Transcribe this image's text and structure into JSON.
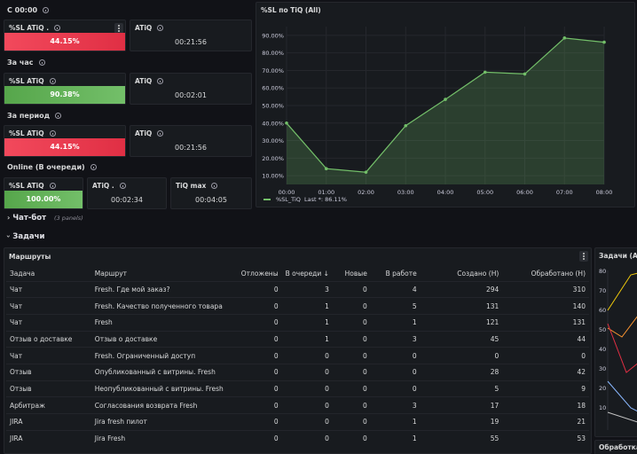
{
  "top": {
    "section1": "С 00:00",
    "section2": "За час",
    "section3": "За период",
    "section4": "Online (В очереди)",
    "rows": [
      {
        "sl_title": "%SL ATiQ .",
        "sl_value": "44.15%",
        "sl_color": "#e02f44",
        "atiq_title": "ATiQ",
        "atiq_value": "00:21:56"
      },
      {
        "sl_title": "%SL ATiQ",
        "sl_value": "90.38%",
        "sl_color": "#56a64b",
        "atiq_title": "ATiQ",
        "atiq_value": "00:02:01"
      },
      {
        "sl_title": "%SL ATiQ",
        "sl_value": "44.15%",
        "sl_color": "#e02f44",
        "atiq_title": "ATiQ",
        "atiq_value": "00:21:56"
      }
    ],
    "online": {
      "sl_title": "%SL ATiQ",
      "sl_value": "100.00%",
      "atiq_title": "ATiQ .",
      "atiq_value": "00:02:34",
      "tiq_title": "TiQ max",
      "tiq_value": "00:04:05"
    }
  },
  "chart_panel": {
    "title": "%SL по TiQ (All)",
    "legend": "%SL_TiQ",
    "legend_last": "Last *: 86.11%"
  },
  "chart_data": {
    "type": "area",
    "x": [
      "00:00",
      "01:00",
      "02:00",
      "03:00",
      "04:00",
      "05:00",
      "06:00",
      "07:00",
      "08:00"
    ],
    "series": [
      {
        "name": "%SL_TiQ",
        "values": [
          40,
          14,
          12,
          38.5,
          53.5,
          69,
          68,
          88.5,
          86.11
        ]
      }
    ],
    "yticks": [
      "10.00%",
      "20.00%",
      "30.00%",
      "40.00%",
      "50.00%",
      "60.00%",
      "70.00%",
      "80.00%",
      "90.00%"
    ],
    "ylim": [
      5,
      95
    ],
    "color": "#73bf69"
  },
  "rows_collapsed": {
    "chatbot": "Чат-бот",
    "chatbot_count": "(3 panels)",
    "tasks": "Задачи"
  },
  "routes": {
    "title": "Маршруты",
    "columns": [
      "Задача",
      "Маршрут",
      "Отложены",
      "В очереди",
      "Новые",
      "В работе",
      "Создано (Н)",
      "Обработано (Н)"
    ],
    "sort_indicator": "↓",
    "rows": [
      [
        "Чат",
        "Fresh. Где мой заказ?",
        "0",
        "3",
        "0",
        "4",
        "294",
        "310"
      ],
      [
        "Чат",
        "Fresh. Качество полученного товара",
        "0",
        "1",
        "0",
        "5",
        "131",
        "140"
      ],
      [
        "Чат",
        "Fresh",
        "0",
        "1",
        "0",
        "1",
        "121",
        "131"
      ],
      [
        "Отзыв о доставке",
        "Отзыв о доставке",
        "0",
        "1",
        "0",
        "3",
        "45",
        "44"
      ],
      [
        "Чат",
        "Fresh. Ограниченный доступ",
        "0",
        "0",
        "0",
        "0",
        "0",
        "0"
      ],
      [
        "Отзыв",
        "Опубликованный с витрины. Fresh",
        "0",
        "0",
        "0",
        "0",
        "28",
        "42"
      ],
      [
        "Отзыв",
        "Неопубликованный с витрины. Fresh",
        "0",
        "0",
        "0",
        "0",
        "5",
        "9"
      ],
      [
        "Арбитраж",
        "Согласования возврата Fresh",
        "0",
        "0",
        "0",
        "3",
        "17",
        "18"
      ],
      [
        "JIRA",
        "Jira fresh пилот",
        "0",
        "0",
        "0",
        "1",
        "19",
        "21"
      ],
      [
        "JIRA",
        "Jira Fresh",
        "0",
        "0",
        "0",
        "1",
        "55",
        "53"
      ]
    ]
  },
  "right_panel": {
    "title": "Задачи (All)",
    "yticks": [
      "80",
      "70",
      "60",
      "50",
      "40",
      "30",
      "20",
      "10"
    ],
    "bottom_title": "Обработка"
  }
}
